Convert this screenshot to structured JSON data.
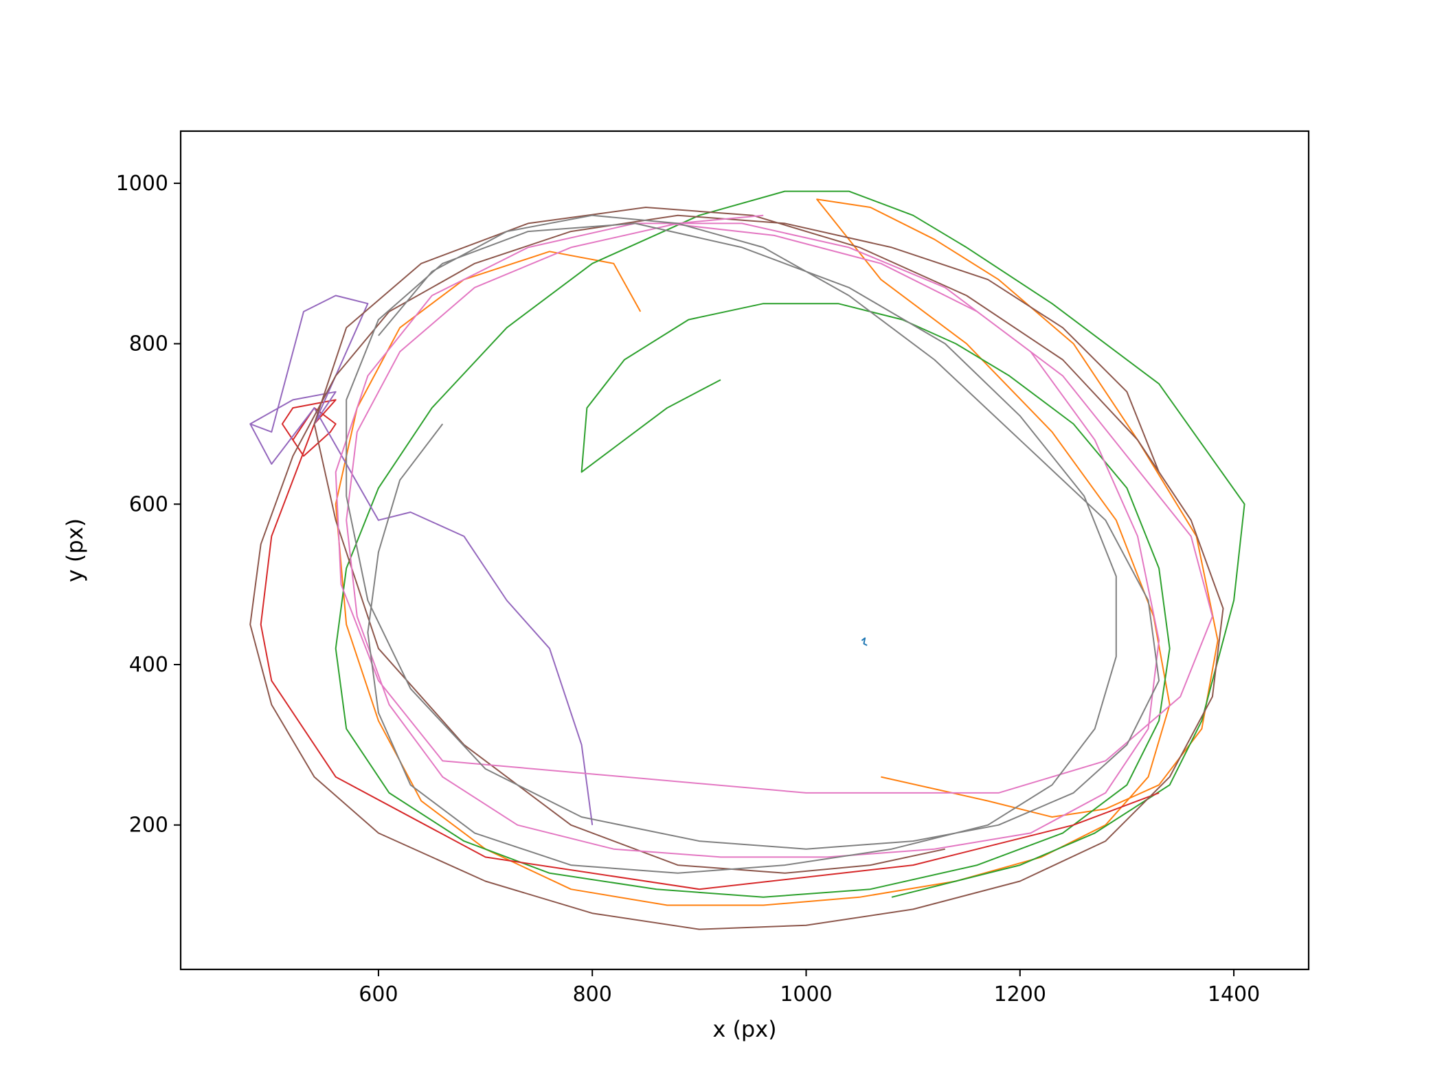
{
  "chart_data": {
    "type": "line",
    "title": "",
    "xlabel": "x (px)",
    "ylabel": "y (px)",
    "xlim": [
      415,
      1470
    ],
    "ylim": [
      20,
      1065
    ],
    "xticks": [
      600,
      800,
      1000,
      1200,
      1400
    ],
    "yticks": [
      200,
      400,
      600,
      800,
      1000
    ],
    "grid": false,
    "legend": "none",
    "series_colors": [
      "#1f77b4",
      "#ff7f0e",
      "#2ca02c",
      "#d62728",
      "#9467bd",
      "#8c564b",
      "#e377c2",
      "#7f7f7f"
    ],
    "series": [
      {
        "color": "#1f77b4",
        "x": [
          1052,
          1055,
          1054,
          1057
        ],
        "y": [
          430,
          433,
          426,
          424
        ]
      },
      {
        "color": "#ff7f0e",
        "x": [
          845,
          820,
          760,
          680,
          620,
          580,
          560,
          570,
          600,
          640,
          700,
          780,
          870,
          960,
          1050,
          1140,
          1220,
          1280,
          1320,
          1340,
          1325,
          1290,
          1230,
          1150,
          1070,
          1010,
          1060,
          1120,
          1180,
          1250,
          1310,
          1365,
          1385,
          1370,
          1330,
          1280,
          1230,
          1170,
          1070
        ],
        "y": [
          840,
          900,
          915,
          880,
          820,
          720,
          600,
          450,
          330,
          230,
          170,
          120,
          100,
          100,
          110,
          130,
          160,
          200,
          260,
          350,
          460,
          580,
          690,
          800,
          880,
          980,
          970,
          930,
          880,
          800,
          680,
          560,
          430,
          320,
          250,
          220,
          210,
          230,
          260
        ]
      },
      {
        "color": "#2ca02c",
        "x": [
          920,
          870,
          820,
          790,
          795,
          830,
          890,
          960,
          1030,
          1090,
          1140,
          1190,
          1250,
          1300,
          1330,
          1340,
          1330,
          1300,
          1240,
          1160,
          1060,
          960,
          860,
          760,
          680,
          610,
          570,
          560,
          570,
          600,
          650,
          720,
          800,
          900,
          980,
          1040,
          1100,
          1150,
          1230,
          1330,
          1410,
          1400,
          1370,
          1340,
          1270,
          1200,
          1080
        ],
        "y": [
          755,
          720,
          670,
          640,
          720,
          780,
          830,
          850,
          850,
          830,
          800,
          760,
          700,
          620,
          520,
          420,
          330,
          250,
          190,
          150,
          120,
          110,
          120,
          140,
          180,
          240,
          320,
          420,
          520,
          620,
          720,
          820,
          900,
          960,
          990,
          990,
          960,
          920,
          850,
          750,
          600,
          480,
          330,
          250,
          190,
          150,
          110
        ]
      },
      {
        "color": "#d62728",
        "x": [
          510,
          520,
          540,
          560,
          555,
          530,
          510,
          520,
          560,
          540,
          500,
          490,
          500,
          560,
          700,
          900,
          1100,
          1250,
          1330
        ],
        "y": [
          700,
          680,
          720,
          700,
          690,
          660,
          700,
          720,
          730,
          700,
          560,
          450,
          380,
          260,
          160,
          120,
          150,
          200,
          240
        ]
      },
      {
        "color": "#9467bd",
        "x": [
          480,
          520,
          560,
          540,
          590,
          560,
          530,
          500,
          480,
          500,
          540,
          600,
          630,
          680,
          720,
          760,
          790,
          800
        ],
        "y": [
          700,
          730,
          740,
          700,
          850,
          860,
          840,
          690,
          700,
          650,
          720,
          580,
          590,
          560,
          480,
          420,
          300,
          200
        ]
      },
      {
        "color": "#8c564b",
        "x": [
          1330,
          1300,
          1240,
          1170,
          1080,
          980,
          880,
          780,
          690,
          610,
          560,
          520,
          490,
          480,
          500,
          540,
          600,
          700,
          800,
          900,
          1000,
          1100,
          1200,
          1280,
          1340,
          1380,
          1390,
          1360,
          1310,
          1240,
          1150,
          1050,
          950,
          850,
          740,
          640,
          570,
          540,
          560,
          600,
          680,
          780,
          880,
          980,
          1060,
          1130
        ],
        "y": [
          640,
          740,
          820,
          880,
          920,
          950,
          960,
          940,
          900,
          840,
          760,
          660,
          550,
          450,
          350,
          260,
          190,
          130,
          90,
          70,
          75,
          95,
          130,
          180,
          260,
          360,
          470,
          580,
          680,
          780,
          860,
          920,
          960,
          970,
          950,
          900,
          820,
          700,
          580,
          420,
          300,
          200,
          150,
          140,
          150,
          170
        ]
      },
      {
        "color": "#e377c2",
        "x": [
          960,
          880,
          780,
          690,
          620,
          580,
          570,
          580,
          610,
          660,
          730,
          820,
          920,
          1020,
          1120,
          1210,
          1280,
          1320,
          1330,
          1310,
          1270,
          1210,
          1130,
          1040,
          940,
          840,
          740,
          650,
          590,
          560,
          565,
          600,
          660,
          1000,
          1180,
          1280,
          1350,
          1380,
          1360,
          1300,
          1240,
          1160,
          1070,
          970,
          870
        ],
        "y": [
          960,
          950,
          920,
          870,
          790,
          690,
          580,
          460,
          350,
          260,
          200,
          170,
          160,
          160,
          170,
          190,
          240,
          320,
          430,
          560,
          680,
          790,
          870,
          920,
          950,
          950,
          920,
          860,
          760,
          640,
          500,
          380,
          280,
          240,
          240,
          280,
          360,
          460,
          560,
          660,
          760,
          840,
          900,
          935,
          950
        ]
      },
      {
        "color": "#7f7f7f",
        "x": [
          660,
          620,
          600,
          590,
          600,
          630,
          690,
          780,
          880,
          980,
          1080,
          1170,
          1230,
          1270,
          1290,
          1290,
          1260,
          1200,
          1130,
          1040,
          940,
          840,
          740,
          660,
          600,
          570,
          570,
          590,
          630,
          700,
          790,
          900,
          1000,
          1100,
          1180,
          1250,
          1300,
          1330,
          1320,
          1280,
          1200,
          1120,
          1040,
          960,
          880,
          800,
          720,
          650,
          600
        ],
        "y": [
          700,
          630,
          540,
          440,
          340,
          250,
          190,
          150,
          140,
          150,
          170,
          200,
          250,
          320,
          410,
          510,
          610,
          710,
          800,
          870,
          920,
          950,
          940,
          900,
          830,
          730,
          610,
          480,
          370,
          270,
          210,
          180,
          170,
          180,
          200,
          240,
          300,
          380,
          480,
          580,
          680,
          780,
          860,
          920,
          950,
          960,
          940,
          890,
          810
        ]
      }
    ]
  }
}
